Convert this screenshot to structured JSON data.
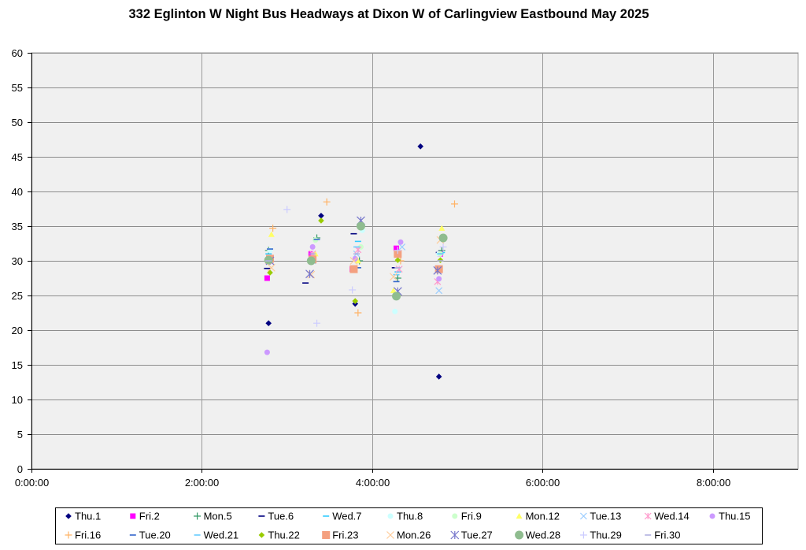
{
  "chart_data": {
    "type": "scatter",
    "title": "332 Eglinton W Night Bus Headways at Dixon W of Carlingview Eastbound May 2025",
    "xlim": [
      "0:00:00",
      "9:00:00"
    ],
    "ylim": [
      0,
      60
    ],
    "x_tick_labels": [
      "0:00:00",
      "2:00:00",
      "4:00:00",
      "6:00:00",
      "8:00:00"
    ],
    "y_tick_labels": [
      "0",
      "5",
      "10",
      "15",
      "20",
      "25",
      "30",
      "35",
      "40",
      "45",
      "50",
      "55",
      "60"
    ],
    "grid": true,
    "legend_position": "bottom",
    "plot_background": "#f0f0f0",
    "series": [
      {
        "name": "Thu.1",
        "marker": "diamond",
        "color": "#000080",
        "x": [
          "2:47:00",
          "3:24:00",
          "3:48:00",
          "4:34:00",
          "4:47:00"
        ],
        "y": [
          21.0,
          36.5,
          23.8,
          46.5,
          13.3
        ]
      },
      {
        "name": "Fri.2",
        "marker": "square",
        "color": "#ff00ff",
        "x": [
          "2:46:00",
          "3:17:00",
          "3:46:00",
          "4:17:00",
          "4:48:00"
        ],
        "y": [
          27.5,
          31.0,
          28.8,
          31.8,
          31.0
        ]
      },
      {
        "name": "Mon.5",
        "marker": "plus",
        "color": "#339966",
        "x": [
          "2:47:00",
          "3:21:00",
          "3:51:00",
          "4:18:00",
          "4:49:00"
        ],
        "y": [
          31.5,
          33.3,
          30.0,
          27.5,
          31.5
        ]
      },
      {
        "name": "Tue.6",
        "marker": "dash",
        "color": "#000080",
        "x": [
          "2:46:00",
          "3:13:00",
          "3:47:00",
          "4:16:00",
          "4:47:00"
        ],
        "y": [
          28.9,
          26.8,
          33.9,
          29.0,
          31.2
        ]
      },
      {
        "name": "Wed.7",
        "marker": "dash",
        "color": "#33ccff",
        "x": [
          "2:47:00",
          "3:17:00",
          "3:50:00",
          "4:18:00",
          "4:49:00"
        ],
        "y": [
          31.0,
          30.0,
          32.8,
          28.4,
          31.2
        ]
      },
      {
        "name": "Thu.8",
        "marker": "circle",
        "color": "#ccffff",
        "x": [
          "2:48:00",
          "3:19:00",
          "3:53:00",
          "4:16:00",
          "4:47:00"
        ],
        "y": [
          31.5,
          31.0,
          34.4,
          22.7,
          31.0
        ]
      },
      {
        "name": "Fri.9",
        "marker": "circle",
        "color": "#ccffcc",
        "x": [
          "2:47:00",
          "3:20:00",
          "3:52:00",
          "4:17:00",
          "4:48:00"
        ],
        "y": [
          30.5,
          33.0,
          32.0,
          25.0,
          31.0
        ]
      },
      {
        "name": "Mon.12",
        "marker": "triangle",
        "color": "#ffff66",
        "x": [
          "2:49:00",
          "3:20:00",
          "3:50:00",
          "4:15:00",
          "4:49:00"
        ],
        "y": [
          33.8,
          31.0,
          30.0,
          25.7,
          34.7
        ]
      },
      {
        "name": "Tue.13",
        "marker": "x",
        "color": "#99ccff",
        "x": [
          "2:48:00",
          "3:18:00",
          "3:49:00",
          "4:21:00",
          "4:47:00"
        ],
        "y": [
          30.0,
          30.0,
          31.0,
          32.0,
          25.7
        ]
      },
      {
        "name": "Wed.14",
        "marker": "asterisk",
        "color": "#ff99cc",
        "x": [
          "2:47:00",
          "3:18:00",
          "3:50:00",
          "4:19:00",
          "4:46:00"
        ],
        "y": [
          30.0,
          31.0,
          31.6,
          28.8,
          27.0
        ]
      },
      {
        "name": "Thu.15",
        "marker": "circle",
        "color": "#cc99ff",
        "x": [
          "2:46:00",
          "3:18:00",
          "3:48:00",
          "4:20:00",
          "4:47:00"
        ],
        "y": [
          16.8,
          32.0,
          30.3,
          32.7,
          27.4
        ]
      },
      {
        "name": "Fri.16",
        "marker": "plus",
        "color": "#ffb366",
        "x": [
          "2:50:00",
          "3:28:00",
          "3:50:00",
          "4:20:00",
          "4:58:00"
        ],
        "y": [
          34.7,
          38.5,
          22.5,
          30.0,
          38.2
        ]
      },
      {
        "name": "Tue.20",
        "marker": "dash",
        "color": "#3366cc",
        "x": [
          "2:48:00",
          "3:21:00",
          "3:50:00",
          "4:17:00",
          "4:48:00"
        ],
        "y": [
          31.7,
          33.1,
          29.0,
          27.0,
          31.0
        ]
      },
      {
        "name": "Wed.21",
        "marker": "dash",
        "color": "#66ccff",
        "x": [
          "2:47:00",
          "3:17:00",
          "3:49:00",
          "4:17:00",
          "4:48:00"
        ],
        "y": [
          30.0,
          30.0,
          32.0,
          28.0,
          31.0
        ]
      },
      {
        "name": "Thu.22",
        "marker": "diamond",
        "color": "#99cc00",
        "x": [
          "2:48:00",
          "3:24:00",
          "3:48:00",
          "4:18:00",
          "4:48:00"
        ],
        "y": [
          28.3,
          35.8,
          24.2,
          30.1,
          30.1
        ]
      },
      {
        "name": "Fri.23",
        "marker": "square",
        "color": "#f4a080",
        "x": [
          "2:48:00",
          "3:18:00",
          "3:47:00",
          "4:18:00",
          "4:47:00"
        ],
        "y": [
          30.3,
          30.2,
          28.8,
          31.0,
          28.8
        ]
      },
      {
        "name": "Mon.26",
        "marker": "x",
        "color": "#ffcc99",
        "x": [
          "2:49:00",
          "3:17:00",
          "3:47:00",
          "4:15:00",
          "4:48:00"
        ],
        "y": [
          29.0,
          28.0,
          30.0,
          27.7,
          33.0
        ]
      },
      {
        "name": "Tue.27",
        "marker": "asterisk",
        "color": "#7777cc",
        "x": [
          "2:48:00",
          "3:16:00",
          "3:52:00",
          "4:18:00",
          "4:46:00"
        ],
        "y": [
          30.0,
          28.1,
          35.8,
          25.6,
          28.6
        ]
      },
      {
        "name": "Wed.28",
        "marker": "circle",
        "color": "#8fbc8f",
        "x": [
          "2:47:00",
          "3:17:00",
          "3:52:00",
          "4:17:00",
          "4:50:00"
        ],
        "y": [
          30.1,
          30.0,
          35.0,
          24.9,
          33.3
        ]
      },
      {
        "name": "Thu.29",
        "marker": "plus",
        "color": "#ccccff",
        "x": [
          "3:00:00",
          "3:21:00",
          "3:46:00",
          "4:18:00",
          "4:50:00"
        ],
        "y": [
          37.4,
          21.0,
          25.8,
          31.5,
          32.0
        ]
      },
      {
        "name": "Fri.30",
        "marker": "dash",
        "color": "#b0b0e0",
        "x": [
          "2:47:00",
          "3:18:00",
          "3:49:00",
          "4:18:00",
          "4:48:00"
        ],
        "y": [
          30.0,
          31.0,
          31.0,
          29.0,
          30.0
        ]
      }
    ]
  }
}
